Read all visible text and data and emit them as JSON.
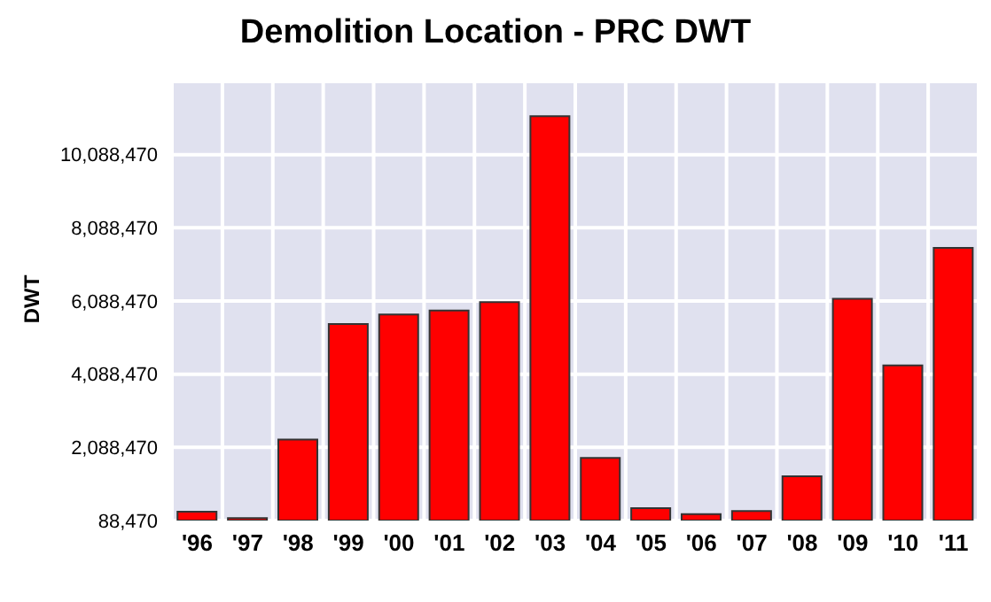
{
  "chart_data": {
    "type": "bar",
    "title": "Demolition Location - PRC DWT",
    "ylabel": "DWT",
    "categories": [
      "'96",
      "'97",
      "'98",
      "'99",
      "'00",
      "'01",
      "'02",
      "'03",
      "'04",
      "'05",
      "'06",
      "'07",
      "'08",
      "'09",
      "'10",
      "'11"
    ],
    "values": [
      330000,
      153000,
      2300000,
      5460000,
      5720000,
      5830000,
      6060000,
      11140000,
      1800000,
      427000,
      266000,
      346000,
      1300000,
      6150000,
      4330000,
      7540000
    ],
    "color": "#ff0000",
    "ylim": [
      88470,
      12088470
    ],
    "yticks": [
      {
        "value": 88470,
        "label": "88,470"
      },
      {
        "value": 2088470,
        "label": "2,088,470"
      },
      {
        "value": 4088470,
        "label": "4,088,470"
      },
      {
        "value": 6088470,
        "label": "6,088,470"
      },
      {
        "value": 8088470,
        "label": "8,088,470"
      },
      {
        "value": 10088470,
        "label": "10,088,470"
      }
    ],
    "grid": true
  }
}
